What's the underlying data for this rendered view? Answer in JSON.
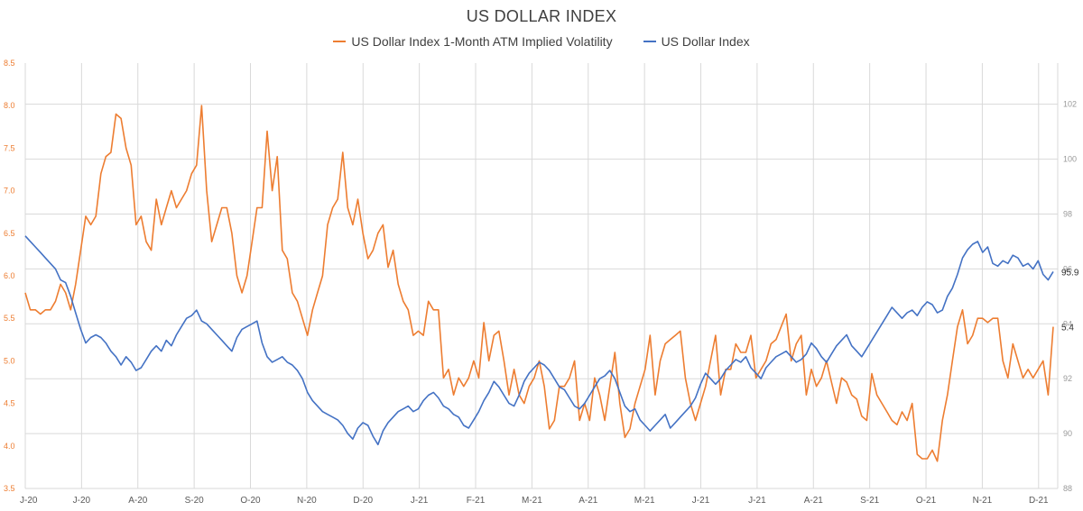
{
  "colors": {
    "orange": "#ED7D31",
    "blue": "#4472C4",
    "grid": "#d9d9d9",
    "text": "#595959"
  },
  "chart_data": {
    "type": "line",
    "title": "US DOLLAR INDEX",
    "legend_position": "top",
    "grid": true,
    "x_tick_labels": [
      "J-20",
      "J-20",
      "A-20",
      "S-20",
      "O-20",
      "N-20",
      "D-20",
      "J-21",
      "F-21",
      "M-21",
      "A-21",
      "M-21",
      "J-21",
      "J-21",
      "A-21",
      "S-21",
      "O-21",
      "N-21",
      "D-21"
    ],
    "y_left": {
      "ticks": [
        "3.5",
        "4.0",
        "4.5",
        "5.0",
        "5.5",
        "6.0",
        "6.5",
        "7.0",
        "7.5",
        "8.0",
        "8.5"
      ],
      "lim": [
        3.5,
        8.5
      ],
      "color": "#ED7D31"
    },
    "y_right": {
      "ticks": [
        "88",
        "90",
        "92",
        "94",
        "96",
        "98",
        "100",
        "102"
      ],
      "lim": [
        88,
        103.5
      ],
      "color": "#999999"
    },
    "series": [
      {
        "name": "US Dollar Index 1-Month ATM Implied Volatility",
        "axis": "left",
        "color": "#ED7D31",
        "end_label": "5.4",
        "values": [
          5.8,
          5.6,
          5.6,
          5.55,
          5.6,
          5.6,
          5.7,
          5.9,
          5.8,
          5.6,
          5.9,
          6.3,
          6.7,
          6.6,
          6.7,
          7.2,
          7.4,
          7.45,
          7.9,
          7.85,
          7.5,
          7.3,
          6.6,
          6.7,
          6.4,
          6.3,
          6.9,
          6.6,
          6.8,
          7.0,
          6.8,
          6.9,
          7.0,
          7.2,
          7.3,
          8.0,
          7.0,
          6.4,
          6.6,
          6.8,
          6.8,
          6.5,
          6.0,
          5.8,
          6.0,
          6.4,
          6.8,
          6.8,
          7.7,
          7.0,
          7.4,
          6.3,
          6.2,
          5.8,
          5.7,
          5.5,
          5.3,
          5.6,
          5.8,
          6.0,
          6.6,
          6.8,
          6.9,
          7.45,
          6.8,
          6.6,
          6.9,
          6.5,
          6.2,
          6.3,
          6.5,
          6.6,
          6.1,
          6.3,
          5.9,
          5.7,
          5.6,
          5.3,
          5.35,
          5.3,
          5.7,
          5.6,
          5.6,
          4.8,
          4.9,
          4.6,
          4.8,
          4.7,
          4.8,
          5.0,
          4.8,
          5.45,
          5.0,
          5.3,
          5.35,
          5.0,
          4.6,
          4.9,
          4.6,
          4.5,
          4.7,
          4.8,
          5.0,
          4.7,
          4.2,
          4.3,
          4.7,
          4.7,
          4.8,
          5.0,
          4.3,
          4.5,
          4.3,
          4.8,
          4.6,
          4.3,
          4.7,
          5.1,
          4.5,
          4.1,
          4.2,
          4.5,
          4.7,
          4.9,
          5.3,
          4.6,
          5.0,
          5.2,
          5.25,
          5.3,
          5.35,
          4.8,
          4.5,
          4.3,
          4.5,
          4.7,
          5.0,
          5.3,
          4.6,
          4.9,
          4.9,
          5.2,
          5.1,
          5.1,
          5.3,
          4.8,
          4.9,
          5.0,
          5.2,
          5.25,
          5.4,
          5.55,
          5.0,
          5.2,
          5.3,
          4.6,
          4.9,
          4.7,
          4.8,
          5.0,
          4.75,
          4.5,
          4.8,
          4.75,
          4.6,
          4.55,
          4.35,
          4.3,
          4.85,
          4.6,
          4.5,
          4.4,
          4.3,
          4.25,
          4.4,
          4.3,
          4.5,
          3.9,
          3.85,
          3.85,
          3.95,
          3.82,
          4.3,
          4.6,
          5.0,
          5.4,
          5.6,
          5.2,
          5.3,
          5.5,
          5.5,
          5.45,
          5.5,
          5.5,
          5.0,
          4.8,
          5.2,
          5.0,
          4.8,
          4.9,
          4.8,
          4.9,
          5.0,
          4.6,
          5.4
        ]
      },
      {
        "name": "US Dollar Index",
        "axis": "right",
        "color": "#4472C4",
        "end_label": "95.9",
        "values": [
          97.2,
          97.0,
          96.8,
          96.6,
          96.4,
          96.2,
          96.0,
          95.6,
          95.5,
          95.0,
          94.4,
          93.8,
          93.3,
          93.5,
          93.6,
          93.5,
          93.3,
          93.0,
          92.8,
          92.5,
          92.8,
          92.6,
          92.3,
          92.4,
          92.7,
          93.0,
          93.2,
          93.0,
          93.4,
          93.2,
          93.6,
          93.9,
          94.2,
          94.3,
          94.5,
          94.1,
          94.0,
          93.8,
          93.6,
          93.4,
          93.2,
          93.0,
          93.5,
          93.8,
          93.9,
          94.0,
          94.1,
          93.3,
          92.8,
          92.6,
          92.7,
          92.8,
          92.6,
          92.5,
          92.3,
          92.0,
          91.5,
          91.2,
          91.0,
          90.8,
          90.7,
          90.6,
          90.5,
          90.3,
          90.0,
          89.8,
          90.2,
          90.4,
          90.3,
          89.9,
          89.6,
          90.1,
          90.4,
          90.6,
          90.8,
          90.9,
          91.0,
          90.8,
          90.9,
          91.2,
          91.4,
          91.5,
          91.3,
          91.0,
          90.9,
          90.7,
          90.6,
          90.3,
          90.2,
          90.5,
          90.8,
          91.2,
          91.5,
          91.9,
          91.7,
          91.4,
          91.1,
          91.0,
          91.4,
          91.9,
          92.2,
          92.4,
          92.6,
          92.5,
          92.3,
          92.0,
          91.7,
          91.6,
          91.3,
          91.0,
          90.9,
          91.1,
          91.4,
          91.7,
          92.0,
          92.1,
          92.3,
          92.0,
          91.5,
          91.0,
          90.8,
          90.9,
          90.5,
          90.3,
          90.1,
          90.3,
          90.5,
          90.7,
          90.2,
          90.4,
          90.6,
          90.8,
          91.0,
          91.3,
          91.8,
          92.2,
          92.0,
          91.8,
          92.0,
          92.3,
          92.5,
          92.7,
          92.6,
          92.8,
          92.4,
          92.2,
          92.0,
          92.4,
          92.6,
          92.8,
          92.9,
          93.0,
          92.8,
          92.6,
          92.7,
          92.9,
          93.3,
          93.1,
          92.8,
          92.6,
          92.9,
          93.2,
          93.4,
          93.6,
          93.2,
          93.0,
          92.8,
          93.1,
          93.4,
          93.7,
          94.0,
          94.3,
          94.6,
          94.4,
          94.2,
          94.4,
          94.5,
          94.3,
          94.6,
          94.8,
          94.7,
          94.4,
          94.5,
          95.0,
          95.3,
          95.8,
          96.4,
          96.7,
          96.9,
          97.0,
          96.6,
          96.8,
          96.2,
          96.1,
          96.3,
          96.2,
          96.5,
          96.4,
          96.1,
          96.2,
          96.0,
          96.3,
          95.8,
          95.6,
          95.9
        ]
      }
    ]
  }
}
